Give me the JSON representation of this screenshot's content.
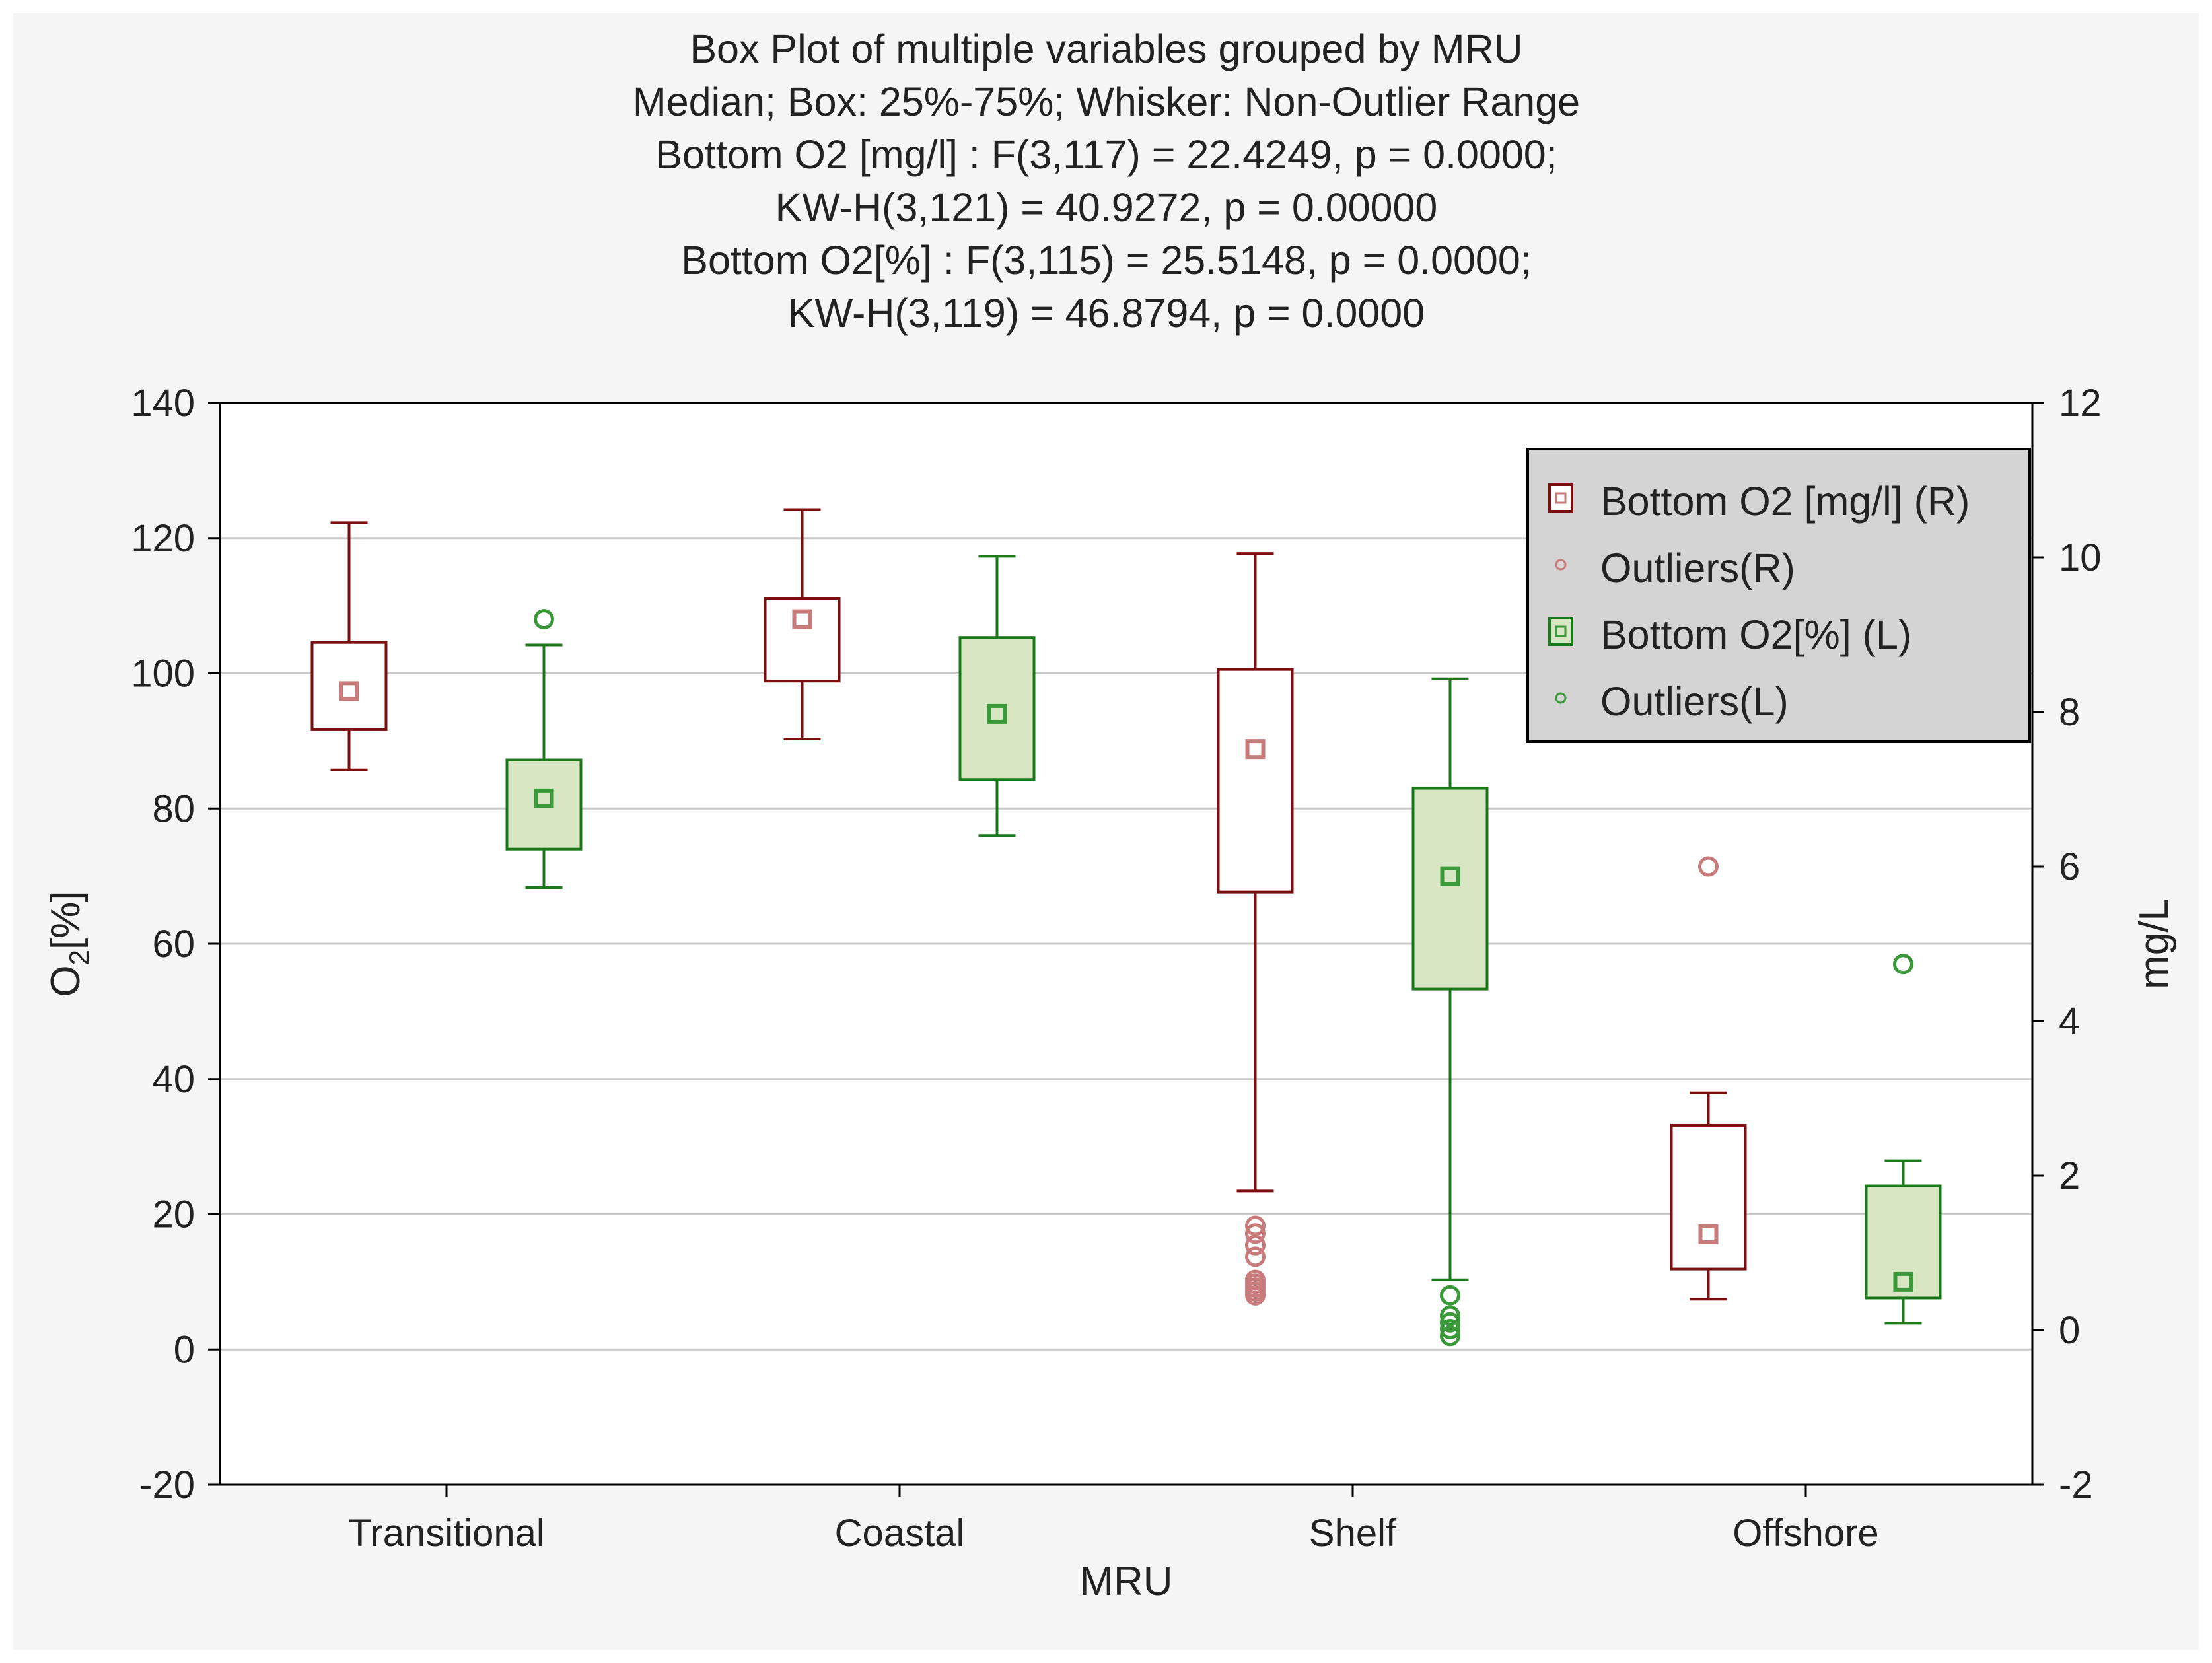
{
  "chart_data": {
    "type": "box",
    "title_lines": [
      "Box Plot of multiple variables grouped by  MRU",
      "Median; Box: 25%-75%; Whisker: Non-Outlier Range",
      "Bottom O2 [mg/l] :   F(3,117) = 22.4249, p = 0.0000;",
      "KW-H(3,121) = 40.9272, p = 0.00000",
      "Bottom O2[%] :   F(3,115) = 25.5148, p = 0.0000;",
      "KW-H(3,119) = 46.8794, p = 0.0000"
    ],
    "xlabel": "MRU",
    "ylabel_left": {
      "main": "O",
      "sub": "2",
      "suffix": "[%]"
    },
    "ylabel_right": "mg/L",
    "categories": [
      "Transitional",
      "Coastal",
      "Shelf",
      "Offshore"
    ],
    "ylim_left": [
      -20,
      140
    ],
    "yticks_left": [
      -20,
      0,
      20,
      40,
      60,
      80,
      100,
      120,
      140
    ],
    "ylim_right": [
      -2,
      12
    ],
    "yticks_right": [
      -2,
      0,
      2,
      4,
      6,
      8,
      10,
      12
    ],
    "grid": true,
    "legend_position": "top-right",
    "legend": [
      {
        "label": "Bottom O2 [mg/l] (R)",
        "kind": "box",
        "series": 0
      },
      {
        "label": "Outliers(R)",
        "kind": "outlier",
        "series": 0
      },
      {
        "label": "Bottom O2[%] (L)",
        "kind": "box",
        "series": 1
      },
      {
        "label": "Outliers(L)",
        "kind": "outlier",
        "series": 1
      }
    ],
    "series": [
      {
        "name": "Bottom O2 [mg/l] (R)",
        "axis": "right",
        "stroke": "#7b0e0e",
        "fill": "#ffffff",
        "median_color": "#c97a7a",
        "boxes": [
          {
            "category": "Transitional",
            "min": 7.25,
            "q1": 7.77,
            "median": 8.27,
            "q3": 8.9,
            "max": 10.45,
            "outliers": []
          },
          {
            "category": "Coastal",
            "min": 7.65,
            "q1": 8.4,
            "median": 9.2,
            "q3": 9.47,
            "max": 10.62,
            "outliers": []
          },
          {
            "category": "Shelf",
            "min": 1.8,
            "q1": 5.67,
            "median": 7.52,
            "q3": 8.55,
            "max": 10.05,
            "outliers": [
              0.45,
              0.5,
              0.55,
              0.6,
              0.65,
              0.95,
              1.1,
              1.25,
              1.35
            ]
          },
          {
            "category": "Offshore",
            "min": 0.4,
            "q1": 0.79,
            "median": 1.24,
            "q3": 2.65,
            "max": 3.07,
            "outliers": [
              6.0
            ]
          }
        ]
      },
      {
        "name": "Bottom O2[%] (L)",
        "axis": "left",
        "stroke": "#1a7a1a",
        "fill": "#d9e6c3",
        "median_color": "#3a9a3a",
        "boxes": [
          {
            "category": "Transitional",
            "min": 68.3,
            "q1": 74.0,
            "median": 81.5,
            "q3": 87.2,
            "max": 104.2,
            "outliers": [
              108.0
            ]
          },
          {
            "category": "Coastal",
            "min": 76.0,
            "q1": 84.3,
            "median": 94.0,
            "q3": 105.3,
            "max": 117.3,
            "outliers": []
          },
          {
            "category": "Shelf",
            "min": 10.3,
            "q1": 53.3,
            "median": 70.0,
            "q3": 83.0,
            "max": 99.2,
            "outliers": [
              2.0,
              3.0,
              4.0,
              5.0,
              8.0
            ]
          },
          {
            "category": "Offshore",
            "min": 3.9,
            "q1": 7.6,
            "median": 10.0,
            "q3": 24.2,
            "max": 27.9,
            "outliers": [
              57.0
            ]
          }
        ]
      }
    ]
  }
}
